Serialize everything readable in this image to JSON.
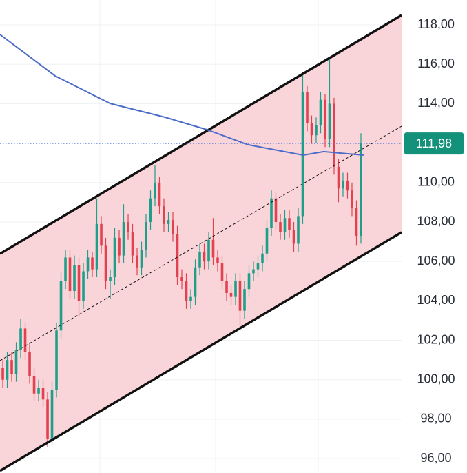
{
  "chart_data": {
    "type": "candlestick",
    "xlim": [
      -0.62,
      89.08
    ],
    "ylim": [
      95.27,
      119.26
    ],
    "yticks": [
      {
        "value": 96,
        "label": "96,00"
      },
      {
        "value": 98,
        "label": "98,00"
      },
      {
        "value": 100,
        "label": "100,00"
      },
      {
        "value": 102,
        "label": "102,00"
      },
      {
        "value": 104,
        "label": "104,00"
      },
      {
        "value": 106,
        "label": "106,00"
      },
      {
        "value": 108,
        "label": "108,00"
      },
      {
        "value": 110,
        "label": "110,00"
      },
      {
        "value": 112,
        "label": "112,00"
      },
      {
        "value": 114,
        "label": "114,00"
      },
      {
        "value": 116,
        "label": "116,00"
      },
      {
        "value": 118,
        "label": "118,00"
      }
    ],
    "grid": true,
    "up_color": "#1f9e89",
    "down_color": "#e2414f",
    "open": [
      100.6,
      100.0,
      101.0,
      100.3,
      101.5,
      102.6,
      101.4,
      100.2,
      99.3,
      99.6,
      99.0,
      97.0,
      99.5,
      102.5,
      105.0,
      106.2,
      104.5,
      105.8,
      104.0,
      105.5,
      106.2,
      105.6,
      107.9,
      106.8,
      105.0,
      105.2,
      107.2,
      106.3,
      108.0,
      107.5,
      106.3,
      105.7,
      106.6,
      108.0,
      109.2,
      110.0,
      108.8,
      107.9,
      108.1,
      107.4,
      105.2,
      105.0,
      104.0,
      104.2,
      105.7,
      106.5,
      106.0,
      107.1,
      106.2,
      105.9,
      105.0,
      104.4,
      104.2,
      105.0,
      103.5,
      104.6,
      105.4,
      105.6,
      105.9,
      106.4,
      107.7,
      109.2,
      108.0,
      107.5,
      108.2,
      107.6,
      106.9,
      108.3,
      114.6,
      113.0,
      112.4,
      112.9,
      114.2,
      112.2,
      114.0,
      110.8,
      109.7,
      110.1,
      109.6,
      108.7,
      107.3
    ],
    "high": [
      101.0,
      101.4,
      101.4,
      101.9,
      103.1,
      102.9,
      101.8,
      100.6,
      100.0,
      100.0,
      99.4,
      99.9,
      102.9,
      105.5,
      106.6,
      106.6,
      106.3,
      106.2,
      105.9,
      106.6,
      106.5,
      109.2,
      108.3,
      107.2,
      105.6,
      107.7,
      107.6,
      108.9,
      108.4,
      107.9,
      106.7,
      107.0,
      108.4,
      109.6,
      110.9,
      110.3,
      109.2,
      108.5,
      108.5,
      107.8,
      105.6,
      105.4,
      104.6,
      106.1,
      106.9,
      106.9,
      107.5,
      108.2,
      106.6,
      106.3,
      105.4,
      104.8,
      105.4,
      105.4,
      105.0,
      105.8,
      106.0,
      106.3,
      106.8,
      108.1,
      109.6,
      109.5,
      108.4,
      108.6,
      108.6,
      108.0,
      108.7,
      115.6,
      114.9,
      113.4,
      113.3,
      114.6,
      114.5,
      116.3,
      114.3,
      111.2,
      110.5,
      110.5,
      110.0,
      109.1,
      112.5
    ],
    "low": [
      99.6,
      99.6,
      99.9,
      99.9,
      101.1,
      101.0,
      99.8,
      98.9,
      98.9,
      98.6,
      96.6,
      96.7,
      99.1,
      102.1,
      104.6,
      104.1,
      104.1,
      103.2,
      103.6,
      105.1,
      105.2,
      105.2,
      106.4,
      104.6,
      104.1,
      104.8,
      105.9,
      105.9,
      107.1,
      105.9,
      105.3,
      105.3,
      106.2,
      107.6,
      108.8,
      108.4,
      107.5,
      107.5,
      107.0,
      104.8,
      104.6,
      103.6,
      103.6,
      103.8,
      105.3,
      105.6,
      105.6,
      105.8,
      105.5,
      104.6,
      104.0,
      103.8,
      103.8,
      102.7,
      103.1,
      104.2,
      105.0,
      105.2,
      105.5,
      106.0,
      107.3,
      107.6,
      107.1,
      107.1,
      107.2,
      106.5,
      106.5,
      107.9,
      112.6,
      112.0,
      112.0,
      112.5,
      111.8,
      111.8,
      110.4,
      109.0,
      109.3,
      109.2,
      108.3,
      106.8,
      106.9
    ],
    "close": [
      100.0,
      101.0,
      100.3,
      101.5,
      102.6,
      101.4,
      100.2,
      99.3,
      99.6,
      99.0,
      97.0,
      99.5,
      102.5,
      105.0,
      106.2,
      104.5,
      105.8,
      104.0,
      105.5,
      106.2,
      105.6,
      107.9,
      106.8,
      105.0,
      105.2,
      107.2,
      106.3,
      108.0,
      107.5,
      106.3,
      105.7,
      106.6,
      108.0,
      109.2,
      110.0,
      108.8,
      107.9,
      108.1,
      107.4,
      105.2,
      105.0,
      104.0,
      104.2,
      105.7,
      106.5,
      106.0,
      107.1,
      106.2,
      105.9,
      105.0,
      104.4,
      104.2,
      105.0,
      103.5,
      104.6,
      105.4,
      105.6,
      105.9,
      106.4,
      107.7,
      109.2,
      108.0,
      107.5,
      108.2,
      107.6,
      106.9,
      108.3,
      114.6,
      113.0,
      112.4,
      112.9,
      114.2,
      112.2,
      114.0,
      110.8,
      109.7,
      110.1,
      109.6,
      108.7,
      107.3,
      111.98
    ],
    "moving_average": {
      "color": "#4a6cc8",
      "x": [
        -0.62,
        11.7,
        24.0,
        36.3,
        45.5,
        54.8,
        67.1,
        71.7,
        80.6
      ],
      "values": [
        117.51,
        115.41,
        114.01,
        113.31,
        112.69,
        111.92,
        111.39,
        111.57,
        111.39
      ]
    },
    "channel": {
      "fill": "#f9d5d9",
      "x": [
        -0.62,
        89.08
      ],
      "upper": [
        106.39,
        118.49
      ],
      "middle": [
        100.97,
        112.86
      ],
      "lower": [
        95.38,
        107.48
      ]
    },
    "last_price": {
      "value": 111.98,
      "label": "111,98",
      "color": "#14917a"
    }
  }
}
